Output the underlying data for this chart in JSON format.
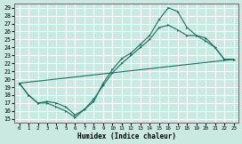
{
  "xlabel": "Humidex (Indice chaleur)",
  "xlim": [
    -0.5,
    23.5
  ],
  "ylim": [
    14.5,
    29.5
  ],
  "xticks": [
    0,
    1,
    2,
    3,
    4,
    5,
    6,
    7,
    8,
    9,
    10,
    11,
    12,
    13,
    14,
    15,
    16,
    17,
    18,
    19,
    20,
    21,
    22,
    23
  ],
  "yticks": [
    15,
    16,
    17,
    18,
    19,
    20,
    21,
    22,
    23,
    24,
    25,
    26,
    27,
    28,
    29
  ],
  "background_color": "#c9e9e1",
  "grid_color": "#ffffff",
  "line_color": "#1a6e62",
  "line1_x": [
    0,
    1,
    2,
    3,
    4,
    5,
    6,
    7,
    8,
    9,
    10,
    11,
    12,
    13,
    14,
    15,
    16,
    17,
    18,
    19,
    20,
    21,
    22,
    23
  ],
  "line1_y": [
    19.5,
    18.0,
    17.0,
    17.0,
    16.5,
    16.0,
    15.2,
    16.2,
    17.2,
    19.5,
    21.2,
    22.6,
    23.3,
    24.4,
    25.5,
    27.5,
    29.0,
    28.5,
    26.5,
    25.5,
    24.8,
    24.0,
    22.5,
    22.5
  ],
  "line2_x": [
    0,
    23
  ],
  "line2_y": [
    19.5,
    22.5
  ],
  "line3_x": [
    0,
    1,
    2,
    3,
    4,
    5,
    6,
    7,
    8,
    9,
    10,
    11,
    12,
    13,
    14,
    15,
    16,
    17,
    18,
    19,
    20,
    21,
    22,
    23
  ],
  "line3_y": [
    19.5,
    18.0,
    17.0,
    17.2,
    17.0,
    16.5,
    15.5,
    16.2,
    17.5,
    19.2,
    20.8,
    22.0,
    23.0,
    24.0,
    25.0,
    26.5,
    26.8,
    26.2,
    25.5,
    25.5,
    25.2,
    24.0,
    22.5,
    22.5
  ]
}
